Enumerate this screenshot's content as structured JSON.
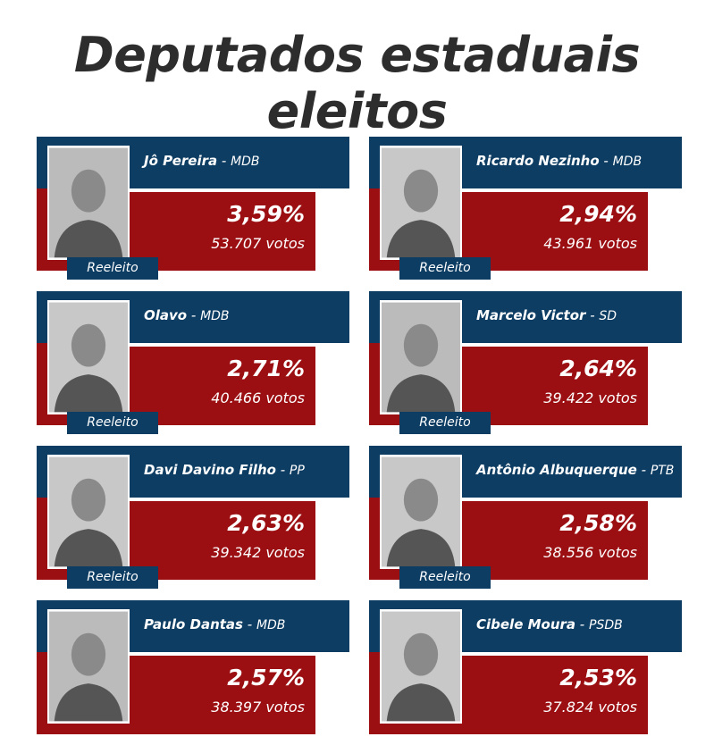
{
  "title": "Deputados estaduais eleitos",
  "colors": {
    "blue": "#0d3d63",
    "red": "#9b0f12"
  },
  "candidates": [
    {
      "name": "Jô Pereira",
      "party": "MDB",
      "percent": "3,59%",
      "votes": "53.707 votos",
      "badge": "Reeleito"
    },
    {
      "name": "Ricardo Nezinho",
      "party": "MDB",
      "percent": "2,94%",
      "votes": "43.961 votos",
      "badge": "Reeleito"
    },
    {
      "name": "Olavo",
      "party": "MDB",
      "percent": "2,71%",
      "votes": "40.466 votos",
      "badge": "Reeleito"
    },
    {
      "name": "Marcelo Victor",
      "party": "SD",
      "percent": "2,64%",
      "votes": "39.422 votos",
      "badge": "Reeleito"
    },
    {
      "name": "Davi Davino Filho",
      "party": "PP",
      "percent": "2,63%",
      "votes": "39.342 votos",
      "badge": "Reeleito"
    },
    {
      "name": "Antônio Albuquerque",
      "party": "PTB",
      "percent": "2,58%",
      "votes": "38.556 votos",
      "badge": "Reeleito"
    },
    {
      "name": "Paulo Dantas",
      "party": "MDB",
      "percent": "2,57%",
      "votes": "38.397 votos",
      "badge": null
    },
    {
      "name": "Cibele Moura",
      "party": "PSDB",
      "percent": "2,53%",
      "votes": "37.824 votos",
      "badge": null
    }
  ]
}
